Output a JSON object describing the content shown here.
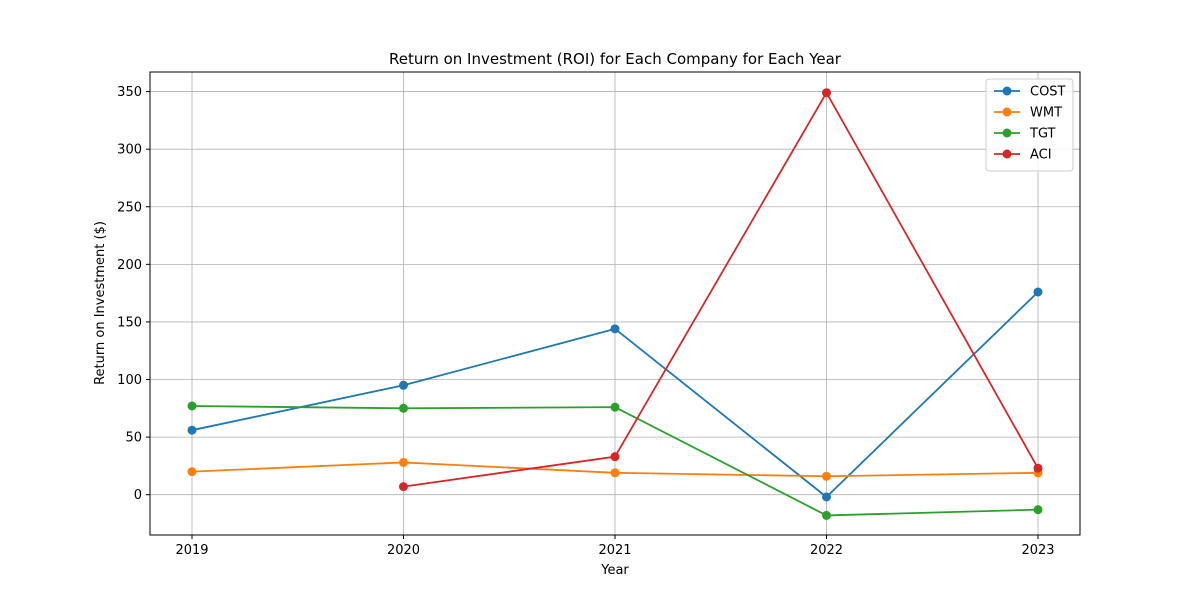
{
  "chart_data": {
    "type": "line",
    "title": "Return on Investment (ROI) for Each Company for Each Year",
    "xlabel": "Year",
    "ylabel": "Return on Investment ($)",
    "x": [
      "2019",
      "2020",
      "2021",
      "2022",
      "2023"
    ],
    "ylim": [
      -35,
      367
    ],
    "yticks": [
      0,
      50,
      100,
      150,
      200,
      250,
      300,
      350
    ],
    "grid": true,
    "legend_position": "top-right",
    "series": [
      {
        "name": "COST",
        "color": "#1f77b4",
        "values": [
          56,
          95,
          144,
          -2,
          176
        ]
      },
      {
        "name": "WMT",
        "color": "#ff7f0e",
        "values": [
          20,
          28,
          19,
          16,
          19
        ]
      },
      {
        "name": "TGT",
        "color": "#2ca02c",
        "values": [
          77,
          75,
          76,
          -18,
          -13
        ]
      },
      {
        "name": "ACI",
        "color": "#d62728",
        "values": [
          null,
          7,
          33,
          349,
          23
        ]
      }
    ]
  }
}
